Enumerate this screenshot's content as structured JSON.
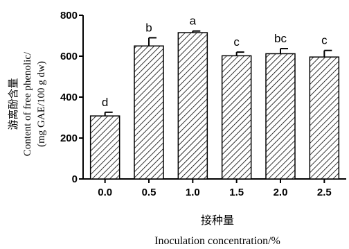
{
  "chart_data": {
    "type": "bar",
    "categories": [
      "0.0",
      "0.5",
      "1.0",
      "1.5",
      "2.0",
      "2.5"
    ],
    "values": [
      308,
      650,
      715,
      602,
      612,
      596
    ],
    "errors": [
      18,
      40,
      8,
      18,
      25,
      32
    ],
    "significance": [
      "d",
      "b",
      "a",
      "c",
      "bc",
      "c"
    ],
    "ylim": [
      0,
      800
    ],
    "yticks": [
      "0",
      "200",
      "400",
      "600",
      "800"
    ],
    "ylabel_lines": [
      "游离酚含量",
      "Content of free phenolic/",
      "(mg GAE/100 g dw)"
    ],
    "xlabel_lines": [
      "接种量",
      "Inoculation concentration/%"
    ],
    "bar_fill": "hatched",
    "grid": false
  }
}
